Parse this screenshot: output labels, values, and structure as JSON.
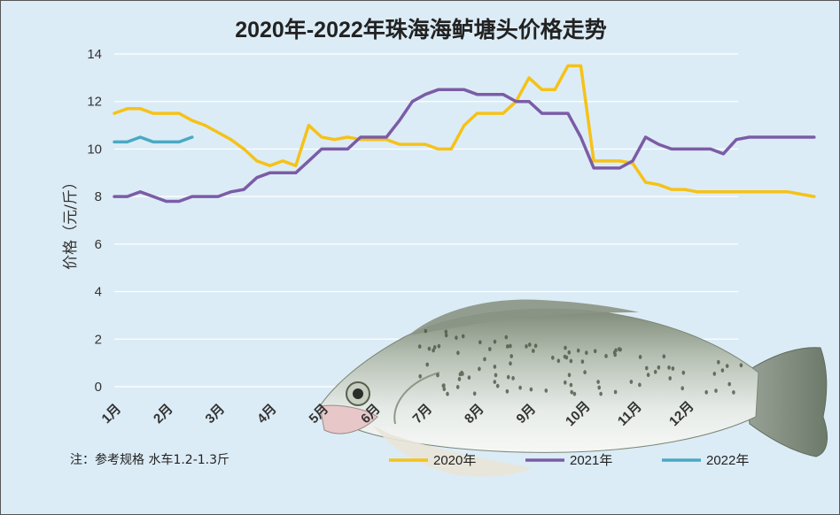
{
  "chart_data": {
    "type": "line",
    "title": "2020年-2022年珠海海鲈塘头价格走势",
    "ylabel": "价格（元/斤）",
    "xlabel": "",
    "ylim": [
      0,
      14
    ],
    "yticks": [
      0,
      2,
      4,
      6,
      8,
      10,
      12,
      14
    ],
    "months": [
      "1月",
      "2月",
      "3月",
      "4月",
      "5月",
      "6月",
      "7月",
      "8月",
      "9月",
      "10月",
      "11月",
      "12月"
    ],
    "grid": true,
    "legend_position": "bottom-right",
    "note": "注：参考规格  水车1.2-1.3斤",
    "series": [
      {
        "name": "2020年",
        "color": "#f5c218",
        "x": [
          0,
          0.25,
          0.5,
          0.75,
          1,
          1.25,
          1.5,
          1.75,
          2,
          2.25,
          2.5,
          2.75,
          3,
          3.25,
          3.5,
          3.75,
          4,
          4.25,
          4.5,
          4.75,
          5,
          5.25,
          5.5,
          5.75,
          6,
          6.25,
          6.5,
          6.75,
          7,
          7.25,
          7.5,
          7.75,
          8,
          8.25,
          8.5,
          8.75,
          9,
          9.25,
          9.5,
          9.75,
          10,
          10.25,
          10.5,
          10.75,
          11,
          11.25,
          11.5,
          11.75,
          12,
          12.25,
          12.5,
          12.75,
          13,
          13.25,
          13.5
        ],
        "values": [
          11.5,
          11.7,
          11.7,
          11.5,
          11.5,
          11.5,
          11.2,
          11.0,
          10.7,
          10.4,
          10.0,
          9.5,
          9.3,
          9.5,
          9.3,
          11.0,
          10.5,
          10.4,
          10.5,
          10.4,
          10.4,
          10.4,
          10.2,
          10.2,
          10.2,
          10.0,
          10.0,
          11.0,
          11.5,
          11.5,
          11.5,
          12.0,
          13.0,
          12.5,
          12.5,
          13.5,
          13.5,
          9.5,
          9.5,
          9.5,
          9.4,
          8.6,
          8.5,
          8.3,
          8.3,
          8.2,
          8.2,
          8.2,
          8.2,
          8.2,
          8.2,
          8.2,
          8.2,
          8.1,
          8.0
        ]
      },
      {
        "name": "2021年",
        "color": "#7b5ca6",
        "x": [
          0,
          0.25,
          0.5,
          0.75,
          1,
          1.25,
          1.5,
          1.75,
          2,
          2.25,
          2.5,
          2.75,
          3,
          3.25,
          3.5,
          3.75,
          4,
          4.25,
          4.5,
          4.75,
          5,
          5.25,
          5.5,
          5.75,
          6,
          6.25,
          6.5,
          6.75,
          7,
          7.25,
          7.5,
          7.75,
          8,
          8.25,
          8.5,
          8.75,
          9,
          9.25,
          9.5,
          9.75,
          10,
          10.25,
          10.5,
          10.75,
          11,
          11.25,
          11.5,
          11.75,
          12,
          12.25,
          12.5,
          12.75,
          13,
          13.25,
          13.5
        ],
        "values": [
          8.0,
          8.0,
          8.2,
          8.0,
          7.8,
          7.8,
          8.0,
          8.0,
          8.0,
          8.2,
          8.3,
          8.8,
          9.0,
          9.0,
          9.0,
          9.5,
          10.0,
          10.0,
          10.0,
          10.5,
          10.5,
          10.5,
          11.2,
          12.0,
          12.3,
          12.5,
          12.5,
          12.5,
          12.3,
          12.3,
          12.3,
          12.0,
          12.0,
          11.5,
          11.5,
          11.5,
          10.5,
          9.2,
          9.2,
          9.2,
          9.5,
          10.5,
          10.2,
          10.0,
          10.0,
          10.0,
          10.0,
          9.8,
          10.4,
          10.5,
          10.5,
          10.5,
          10.5,
          10.5,
          10.5
        ]
      },
      {
        "name": "2022年",
        "color": "#4aa9c4",
        "x": [
          0,
          0.25,
          0.5,
          0.75,
          1,
          1.25,
          1.5
        ],
        "values": [
          10.3,
          10.3,
          10.5,
          10.3,
          10.3,
          10.3,
          10.5
        ]
      }
    ]
  }
}
